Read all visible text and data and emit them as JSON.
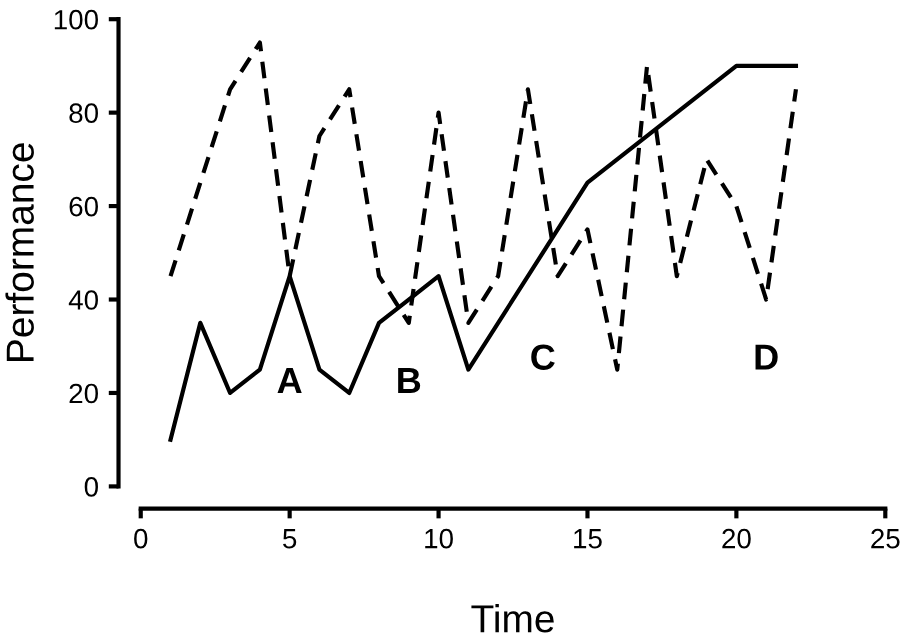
{
  "chart_data": {
    "type": "line",
    "xlabel": "Time",
    "ylabel": "Performance",
    "xlim": [
      0,
      25
    ],
    "xticks": [
      0,
      5,
      10,
      15,
      20,
      25
    ],
    "ylim": [
      0,
      100
    ],
    "yticks": [
      0,
      20,
      40,
      60,
      80,
      100
    ],
    "grid": false,
    "legend": false,
    "marker": "none",
    "series": [
      {
        "color": "#000000",
        "line_style": "solid",
        "x": [
          1,
          2,
          3,
          4,
          5,
          6,
          7,
          8,
          9,
          10,
          11,
          15,
          20,
          22
        ],
        "values": [
          10,
          35,
          20,
          25,
          45,
          25,
          20,
          35,
          40,
          45,
          25,
          65,
          90,
          90
        ]
      },
      {
        "color": "#000000",
        "line_style": "dashed",
        "x": [
          1,
          2,
          3,
          4,
          5,
          6,
          7,
          8,
          9,
          10,
          11,
          12,
          13,
          14,
          15,
          16,
          17,
          18,
          19,
          20,
          21,
          22
        ],
        "values": [
          45,
          65,
          85,
          95,
          45,
          75,
          85,
          45,
          35,
          80,
          35,
          45,
          85,
          45,
          55,
          25,
          90,
          45,
          70,
          60,
          40,
          85
        ]
      }
    ],
    "annotations": [
      "A",
      "B",
      "C",
      "D"
    ]
  }
}
